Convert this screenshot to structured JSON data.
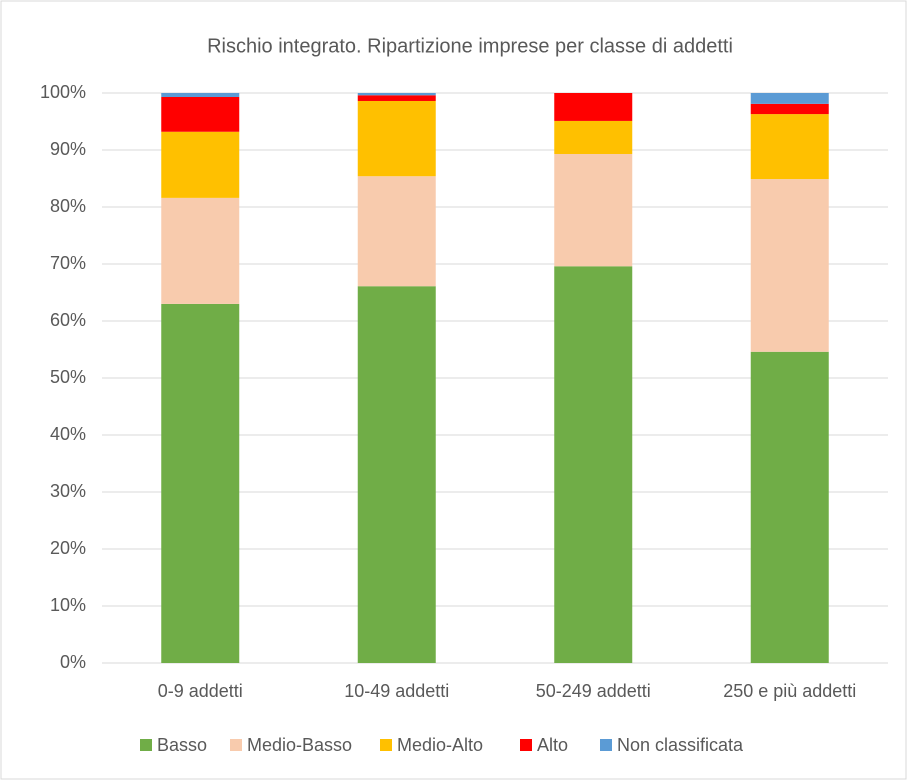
{
  "chart_data": {
    "type": "stacked_bar",
    "title": "Rischio integrato. Ripartizione imprese per classe di addetti",
    "categories": [
      "0-9 addetti",
      "10-49 addetti",
      "50-249 addetti",
      "250 e più addetti"
    ],
    "series": [
      {
        "name": "Basso",
        "color": "#70ad47",
        "values": [
          63.0,
          66.1,
          69.6,
          54.6
        ]
      },
      {
        "name": "Medio-Basso",
        "color": "#f8cbad",
        "values": [
          18.6,
          19.3,
          19.7,
          30.3
        ]
      },
      {
        "name": "Medio-Alto",
        "color": "#ffc000",
        "values": [
          11.6,
          13.2,
          5.8,
          11.4
        ]
      },
      {
        "name": "Alto",
        "color": "#ff0000",
        "values": [
          6.1,
          1.0,
          4.9,
          1.8
        ]
      },
      {
        "name": "Non classificata",
        "color": "#5b9bd5",
        "values": [
          0.7,
          0.4,
          0,
          1.9
        ]
      }
    ],
    "ylim": [
      0,
      100
    ],
    "yticks": [
      {
        "value": 0,
        "label": "0%"
      },
      {
        "value": 10,
        "label": "10%"
      },
      {
        "value": 20,
        "label": "20%"
      },
      {
        "value": 30,
        "label": "30%"
      },
      {
        "value": 40,
        "label": "40%"
      },
      {
        "value": 50,
        "label": "50%"
      },
      {
        "value": 60,
        "label": "60%"
      },
      {
        "value": 70,
        "label": "70%"
      },
      {
        "value": 80,
        "label": "80%"
      },
      {
        "value": 90,
        "label": "90%"
      },
      {
        "value": 100,
        "label": "100%"
      }
    ],
    "grid": true,
    "legend": "bottom"
  }
}
